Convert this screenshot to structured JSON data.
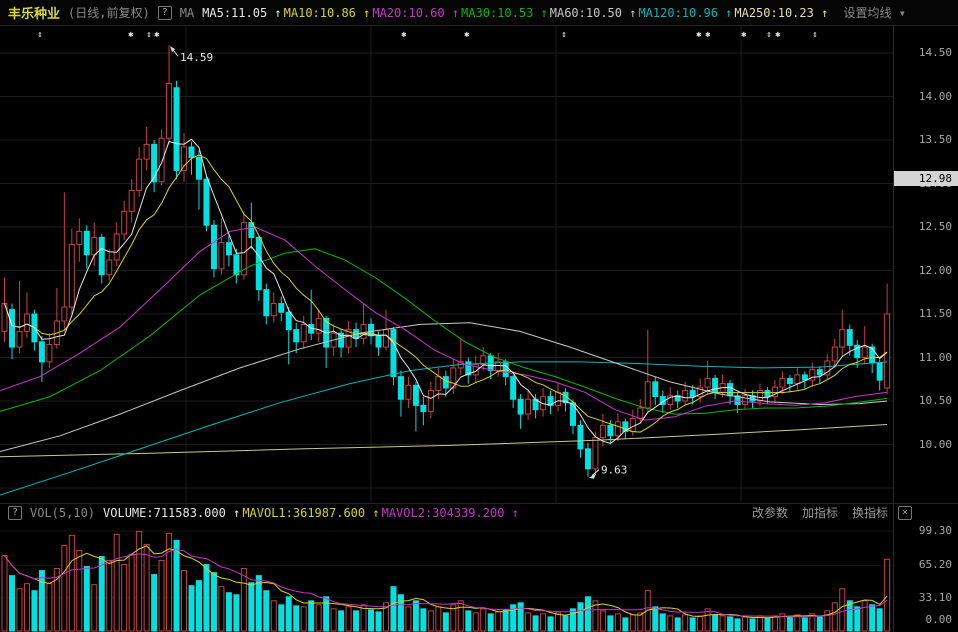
{
  "header": {
    "stock_name": "丰乐种业",
    "chart_mode": "(日线,前复权)",
    "help_icon": "?",
    "ma_label": "MA",
    "arrow": "↑",
    "ma_items": [
      {
        "label": "MA5:11.05",
        "color": "#e8e8e8"
      },
      {
        "label": "MA10:10.86",
        "color": "#d6d616"
      },
      {
        "label": "MA20:10.60",
        "color": "#cc33cc"
      },
      {
        "label": "MA30:10.53",
        "color": "#00bb00"
      },
      {
        "label": "MA60:10.50",
        "color": "#c8c8c8"
      },
      {
        "label": "MA120:10.96",
        "color": "#00b8b8"
      },
      {
        "label": "MA250:10.23",
        "color": "#e0e0b0"
      }
    ],
    "settings_button": "设置均线",
    "dropdown_icon": "▾"
  },
  "price_axis": {
    "ticks": [
      {
        "label": "14.50",
        "price": 14.5
      },
      {
        "label": "14.00",
        "price": 14.0
      },
      {
        "label": "13.50",
        "price": 13.5
      },
      {
        "label": "13.00",
        "price": 13.0
      },
      {
        "label": "12.50",
        "price": 12.5
      },
      {
        "label": "12.00",
        "price": 12.0
      },
      {
        "label": "11.50",
        "price": 11.5
      },
      {
        "label": "11.00",
        "price": 11.0
      },
      {
        "label": "10.50",
        "price": 10.5
      },
      {
        "label": "10.00",
        "price": 10.0
      }
    ],
    "current_price_tag": {
      "label": "12.98",
      "price": 12.98
    }
  },
  "vol_header": {
    "help_icon": "?",
    "indicator": "VOL(5,10)",
    "series": [
      {
        "label": "VOLUME:711583.000",
        "color": "#e8e8e8"
      },
      {
        "label": "MAVOL1:361987.600",
        "color": "#d6d616"
      },
      {
        "label": "MAVOL2:304339.200",
        "color": "#cc33cc"
      }
    ],
    "arrow": "↑",
    "buttons": [
      "改参数",
      "加指标",
      "换指标"
    ],
    "close_icon": "×"
  },
  "vol_axis": {
    "ticks": [
      {
        "label": "99.30",
        "value": 99.3
      },
      {
        "label": "65.20",
        "value": 65.2
      },
      {
        "label": "33.10",
        "value": 33.1
      },
      {
        "label": "0.00",
        "value": 0
      }
    ]
  },
  "chart_data": {
    "type": "candlestick+volume",
    "title": "丰乐种业 (日线,前复权)",
    "ylabel": "price",
    "price_range": [
      9.3,
      14.75
    ],
    "grid": true,
    "colors": {
      "up": "#cd3f3f",
      "down": "#00e1e1",
      "grid": "#1d1d1d",
      "ma5": "#e8e8e8",
      "ma10": "#d6d616",
      "ma20": "#cc33cc",
      "ma30": "#00bb00",
      "ma60": "#c8c8c8",
      "ma120": "#00b8b8",
      "ma250": "#c8c88a",
      "mavol1": "#d6d616",
      "mavol2": "#cc33cc",
      "marker": "#e8e8e8"
    },
    "candles": [
      [
        11.3,
        11.92,
        11.18,
        11.62
      ],
      [
        11.55,
        11.62,
        10.98,
        11.12
      ],
      [
        11.12,
        11.88,
        11.05,
        11.3
      ],
      [
        11.3,
        11.75,
        11.22,
        11.5
      ],
      [
        11.5,
        11.55,
        11.08,
        11.18
      ],
      [
        11.18,
        11.25,
        10.72,
        10.95
      ],
      [
        10.95,
        11.28,
        10.88,
        11.15
      ],
      [
        11.15,
        11.8,
        11.1,
        11.42
      ],
      [
        11.42,
        12.9,
        11.3,
        11.58
      ],
      [
        11.58,
        12.48,
        11.5,
        12.3
      ],
      [
        12.3,
        12.6,
        12.1,
        12.45
      ],
      [
        12.45,
        12.52,
        12.02,
        12.18
      ],
      [
        12.18,
        12.55,
        12.05,
        12.38
      ],
      [
        12.38,
        12.42,
        11.85,
        11.95
      ],
      [
        11.95,
        12.25,
        11.88,
        12.12
      ],
      [
        12.12,
        12.55,
        12.05,
        12.42
      ],
      [
        12.42,
        12.8,
        12.35,
        12.68
      ],
      [
        12.68,
        13.05,
        12.55,
        12.92
      ],
      [
        12.92,
        13.42,
        12.85,
        13.28
      ],
      [
        13.28,
        13.65,
        13.15,
        13.45
      ],
      [
        13.45,
        13.5,
        12.9,
        13.02
      ],
      [
        13.02,
        13.62,
        12.98,
        13.52
      ],
      [
        13.52,
        14.59,
        13.45,
        14.15
      ],
      [
        14.1,
        14.18,
        13.05,
        13.15
      ],
      [
        13.15,
        13.58,
        13.02,
        13.42
      ],
      [
        13.42,
        13.48,
        13.1,
        13.3
      ],
      [
        13.3,
        13.38,
        12.7,
        13.05
      ],
      [
        13.05,
        13.08,
        12.45,
        12.52
      ],
      [
        12.52,
        12.58,
        11.92,
        12.02
      ],
      [
        12.02,
        12.6,
        11.95,
        12.32
      ],
      [
        12.32,
        12.42,
        12.05,
        12.18
      ],
      [
        12.18,
        12.25,
        11.85,
        11.95
      ],
      [
        11.95,
        12.68,
        11.9,
        12.55
      ],
      [
        12.55,
        12.78,
        12.25,
        12.38
      ],
      [
        12.38,
        12.4,
        11.65,
        11.78
      ],
      [
        11.78,
        11.85,
        11.38,
        11.48
      ],
      [
        11.48,
        11.75,
        11.4,
        11.62
      ],
      [
        11.62,
        11.7,
        11.42,
        11.52
      ],
      [
        11.52,
        11.58,
        10.92,
        11.32
      ],
      [
        11.32,
        11.4,
        11.05,
        11.18
      ],
      [
        11.18,
        11.48,
        11.1,
        11.38
      ],
      [
        11.38,
        11.78,
        11.2,
        11.28
      ],
      [
        11.28,
        11.55,
        11.18,
        11.45
      ],
      [
        11.45,
        11.48,
        10.88,
        11.12
      ],
      [
        11.12,
        11.38,
        11.02,
        11.28
      ],
      [
        11.28,
        11.32,
        11.0,
        11.12
      ],
      [
        11.12,
        11.42,
        11.05,
        11.32
      ],
      [
        11.32,
        11.4,
        11.12,
        11.22
      ],
      [
        11.22,
        11.62,
        11.15,
        11.38
      ],
      [
        11.38,
        11.45,
        11.15,
        11.25
      ],
      [
        11.25,
        11.3,
        11.02,
        11.12
      ],
      [
        11.12,
        11.55,
        11.08,
        11.32
      ],
      [
        11.32,
        11.35,
        10.68,
        10.78
      ],
      [
        10.78,
        10.85,
        10.32,
        10.52
      ],
      [
        10.52,
        10.78,
        10.42,
        10.68
      ],
      [
        10.68,
        10.72,
        10.15,
        10.45
      ],
      [
        10.45,
        10.55,
        10.22,
        10.38
      ],
      [
        10.38,
        10.72,
        10.3,
        10.62
      ],
      [
        10.62,
        10.88,
        10.52,
        10.78
      ],
      [
        10.78,
        10.85,
        10.55,
        10.65
      ],
      [
        10.65,
        10.98,
        10.58,
        10.88
      ],
      [
        10.88,
        11.22,
        10.8,
        10.95
      ],
      [
        10.95,
        11.0,
        10.7,
        10.8
      ],
      [
        10.8,
        11.02,
        10.72,
        10.92
      ],
      [
        10.92,
        11.12,
        10.85,
        11.02
      ],
      [
        11.02,
        11.05,
        10.75,
        10.85
      ],
      [
        10.85,
        11.05,
        10.78,
        10.95
      ],
      [
        10.95,
        10.98,
        10.68,
        10.78
      ],
      [
        10.78,
        10.8,
        10.42,
        10.52
      ],
      [
        10.52,
        10.58,
        10.18,
        10.35
      ],
      [
        10.35,
        10.62,
        10.28,
        10.52
      ],
      [
        10.52,
        10.58,
        10.3,
        10.4
      ],
      [
        10.4,
        10.65,
        10.32,
        10.55
      ],
      [
        10.55,
        10.62,
        10.35,
        10.45
      ],
      [
        10.45,
        10.7,
        10.38,
        10.6
      ],
      [
        10.6,
        10.65,
        10.38,
        10.48
      ],
      [
        10.48,
        10.52,
        10.12,
        10.22
      ],
      [
        10.22,
        10.28,
        9.85,
        9.95
      ],
      [
        9.95,
        10.02,
        9.63,
        9.72
      ],
      [
        9.72,
        10.15,
        9.65,
        10.08
      ],
      [
        10.08,
        10.35,
        9.98,
        10.22
      ],
      [
        10.22,
        10.28,
        10.0,
        10.1
      ],
      [
        10.1,
        10.36,
        10.04,
        10.26
      ],
      [
        10.26,
        10.3,
        10.06,
        10.15
      ],
      [
        10.15,
        10.4,
        10.1,
        10.3
      ],
      [
        10.3,
        10.52,
        10.24,
        10.42
      ],
      [
        10.42,
        11.32,
        10.38,
        10.72
      ],
      [
        10.72,
        10.78,
        10.45,
        10.55
      ],
      [
        10.55,
        10.62,
        10.36,
        10.46
      ],
      [
        10.46,
        10.66,
        10.4,
        10.56
      ],
      [
        10.56,
        10.62,
        10.42,
        10.5
      ],
      [
        10.5,
        10.72,
        10.45,
        10.62
      ],
      [
        10.62,
        10.68,
        10.46,
        10.55
      ],
      [
        10.55,
        10.76,
        10.48,
        10.66
      ],
      [
        10.66,
        10.96,
        10.58,
        10.76
      ],
      [
        10.76,
        10.8,
        10.52,
        10.6
      ],
      [
        10.6,
        10.8,
        10.54,
        10.7
      ],
      [
        10.7,
        10.74,
        10.46,
        10.56
      ],
      [
        10.56,
        10.6,
        10.36,
        10.46
      ],
      [
        10.46,
        10.64,
        10.4,
        10.56
      ],
      [
        10.56,
        10.62,
        10.42,
        10.5
      ],
      [
        10.5,
        10.7,
        10.44,
        10.62
      ],
      [
        10.62,
        10.66,
        10.46,
        10.55
      ],
      [
        10.55,
        10.74,
        10.48,
        10.66
      ],
      [
        10.66,
        10.84,
        10.58,
        10.76
      ],
      [
        10.76,
        10.8,
        10.6,
        10.7
      ],
      [
        10.7,
        10.88,
        10.62,
        10.8
      ],
      [
        10.8,
        10.84,
        10.64,
        10.74
      ],
      [
        10.74,
        10.94,
        10.66,
        10.86
      ],
      [
        10.86,
        10.9,
        10.7,
        10.8
      ],
      [
        10.8,
        11.04,
        10.74,
        10.96
      ],
      [
        10.96,
        11.22,
        10.88,
        11.12
      ],
      [
        11.12,
        11.55,
        11.02,
        11.32
      ],
      [
        11.32,
        11.38,
        11.02,
        11.14
      ],
      [
        11.14,
        11.2,
        10.88,
        11.0
      ],
      [
        11.0,
        11.36,
        10.92,
        11.12
      ],
      [
        11.12,
        11.16,
        10.82,
        10.94
      ],
      [
        10.94,
        10.98,
        10.62,
        10.74
      ],
      [
        10.65,
        11.85,
        10.58,
        11.5
      ]
    ],
    "volumes": [
      75,
      55,
      42,
      47,
      40,
      60,
      47,
      62,
      85,
      95,
      80,
      64,
      46,
      74,
      70,
      96,
      66,
      76,
      99,
      86,
      56,
      70,
      97,
      90,
      60,
      45,
      50,
      66,
      58,
      44,
      38,
      36,
      62,
      48,
      55,
      40,
      30,
      26,
      34,
      25,
      24,
      30,
      26,
      34,
      22,
      20,
      24,
      20,
      26,
      21,
      19,
      28,
      44,
      36,
      24,
      30,
      22,
      20,
      24,
      18,
      26,
      30,
      20,
      18,
      22,
      17,
      19,
      21,
      26,
      28,
      18,
      15,
      17,
      14,
      18,
      15,
      22,
      28,
      34,
      30,
      20,
      15,
      17,
      13,
      16,
      18,
      40,
      24,
      17,
      15,
      13,
      16,
      13,
      15,
      22,
      16,
      15,
      14,
      12,
      14,
      12,
      15,
      13,
      15,
      17,
      14,
      16,
      13,
      17,
      14,
      20,
      28,
      42,
      30,
      24,
      30,
      26,
      22,
      71.2
    ],
    "ma_overlays": {
      "ma20": [
        [
          0,
          10.62
        ],
        [
          40,
          10.78
        ],
        [
          80,
          11.05
        ],
        [
          120,
          11.35
        ],
        [
          160,
          11.78
        ],
        [
          200,
          12.22
        ],
        [
          230,
          12.45
        ],
        [
          255,
          12.5
        ],
        [
          285,
          12.35
        ],
        [
          315,
          12.05
        ],
        [
          345,
          11.78
        ],
        [
          375,
          11.52
        ],
        [
          405,
          11.32
        ],
        [
          435,
          11.08
        ],
        [
          465,
          10.92
        ],
        [
          495,
          10.85
        ],
        [
          525,
          10.8
        ],
        [
          555,
          10.72
        ],
        [
          585,
          10.6
        ],
        [
          615,
          10.4
        ],
        [
          645,
          10.28
        ],
        [
          675,
          10.32
        ],
        [
          705,
          10.44
        ],
        [
          735,
          10.5
        ],
        [
          765,
          10.47
        ],
        [
          795,
          10.45
        ],
        [
          825,
          10.48
        ],
        [
          855,
          10.55
        ],
        [
          887,
          10.6
        ]
      ],
      "ma30": [
        [
          0,
          10.38
        ],
        [
          50,
          10.55
        ],
        [
          100,
          10.85
        ],
        [
          150,
          11.25
        ],
        [
          200,
          11.72
        ],
        [
          250,
          12.05
        ],
        [
          285,
          12.2
        ],
        [
          315,
          12.25
        ],
        [
          345,
          12.12
        ],
        [
          375,
          11.92
        ],
        [
          405,
          11.68
        ],
        [
          435,
          11.42
        ],
        [
          465,
          11.18
        ],
        [
          495,
          11.0
        ],
        [
          525,
          10.88
        ],
        [
          555,
          10.78
        ],
        [
          585,
          10.66
        ],
        [
          615,
          10.53
        ],
        [
          645,
          10.42
        ],
        [
          675,
          10.35
        ],
        [
          705,
          10.36
        ],
        [
          735,
          10.4
        ],
        [
          765,
          10.42
        ],
        [
          795,
          10.42
        ],
        [
          825,
          10.44
        ],
        [
          855,
          10.48
        ],
        [
          887,
          10.53
        ]
      ],
      "ma60": [
        [
          0,
          9.92
        ],
        [
          60,
          10.1
        ],
        [
          120,
          10.35
        ],
        [
          180,
          10.62
        ],
        [
          240,
          10.88
        ],
        [
          300,
          11.1
        ],
        [
          360,
          11.28
        ],
        [
          420,
          11.38
        ],
        [
          470,
          11.4
        ],
        [
          520,
          11.3
        ],
        [
          570,
          11.12
        ],
        [
          620,
          10.92
        ],
        [
          670,
          10.72
        ],
        [
          720,
          10.58
        ],
        [
          770,
          10.49
        ],
        [
          820,
          10.46
        ],
        [
          860,
          10.47
        ],
        [
          887,
          10.5
        ]
      ],
      "ma120": [
        [
          0,
          9.42
        ],
        [
          70,
          9.68
        ],
        [
          140,
          9.95
        ],
        [
          210,
          10.22
        ],
        [
          280,
          10.48
        ],
        [
          350,
          10.7
        ],
        [
          410,
          10.85
        ],
        [
          460,
          10.92
        ],
        [
          520,
          10.95
        ],
        [
          580,
          10.95
        ],
        [
          640,
          10.93
        ],
        [
          700,
          10.9
        ],
        [
          760,
          10.88
        ],
        [
          820,
          10.89
        ],
        [
          887,
          10.95
        ]
      ],
      "ma250": [
        [
          0,
          9.86
        ],
        [
          150,
          9.9
        ],
        [
          300,
          9.95
        ],
        [
          450,
          9.99
        ],
        [
          600,
          10.05
        ],
        [
          720,
          10.12
        ],
        [
          800,
          10.17
        ],
        [
          887,
          10.23
        ]
      ]
    },
    "annotations": [
      {
        "type": "high",
        "index": 22,
        "price": 14.59,
        "label": "14.59"
      },
      {
        "type": "low",
        "index": 78,
        "price": 9.63,
        "label": "9.63"
      }
    ],
    "event_markers": [
      {
        "x": 40,
        "glyph": "↕"
      },
      {
        "x": 131,
        "glyph": "✱"
      },
      {
        "x": 149,
        "glyph": "↕"
      },
      {
        "x": 157,
        "glyph": "✱"
      },
      {
        "x": 404,
        "glyph": "✱"
      },
      {
        "x": 467,
        "glyph": "✱"
      },
      {
        "x": 564,
        "glyph": "↕"
      },
      {
        "x": 699,
        "glyph": "✱"
      },
      {
        "x": 708,
        "glyph": "✱"
      },
      {
        "x": 744,
        "glyph": "✱"
      },
      {
        "x": 769,
        "glyph": "↕"
      },
      {
        "x": 778,
        "glyph": "✱"
      },
      {
        "x": 815,
        "glyph": "↕"
      }
    ],
    "grid_vlines_x": [
      186,
      371,
      556,
      741
    ]
  }
}
